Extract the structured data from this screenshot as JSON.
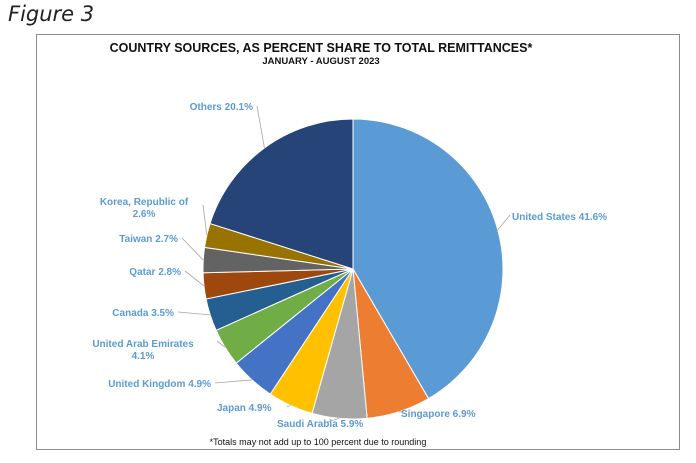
{
  "figure_caption": "Figure 3",
  "chart_data": {
    "type": "pie",
    "title": "COUNTRY SOURCES, AS PERCENT SHARE TO TOTAL REMITTANCES*",
    "subtitle": "JANUARY - AUGUST 2023",
    "footnote": "*Totals may not add up to 100 percent due to rounding",
    "slices": [
      {
        "label": "United States 41.6%",
        "value": 41.6,
        "color": "#5b9bd5"
      },
      {
        "label": "Singapore 6.9%",
        "value": 6.9,
        "color": "#ed7d31"
      },
      {
        "label": "Saudi Arabia 5.9%",
        "value": 5.9,
        "color": "#a5a5a5"
      },
      {
        "label": "Japan 4.9%",
        "value": 4.9,
        "color": "#ffc000"
      },
      {
        "label": "United Kingdom 4.9%",
        "value": 4.9,
        "color": "#4472c4"
      },
      {
        "label_lines": [
          "United Arab Emirates",
          "4.1%"
        ],
        "value": 4.1,
        "color": "#70ad47"
      },
      {
        "label": "Canada 3.5%",
        "value": 3.5,
        "color": "#255e91"
      },
      {
        "label": "Qatar 2.8%",
        "value": 2.8,
        "color": "#9e480e"
      },
      {
        "label": "Taiwan 2.7%",
        "value": 2.7,
        "color": "#636363"
      },
      {
        "label_lines": [
          "Korea, Republic of",
          "2.6%"
        ],
        "value": 2.6,
        "color": "#997300"
      },
      {
        "label": "Others 20.1%",
        "value": 20.1,
        "color": "#264478"
      }
    ]
  }
}
